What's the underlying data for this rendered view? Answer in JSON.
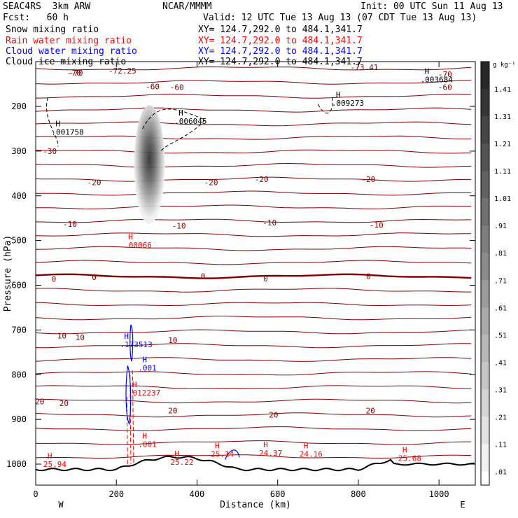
{
  "header": {
    "model": "SEAC4RS  3km ARW",
    "org": "NCAR/MMMM",
    "init": "Init: 00 UTC Sun 11 Aug 13",
    "fcst": "Fcst:   60 h",
    "valid": "Valid: 12 UTC Tue 13 Aug 13 (07 CDT Tue 13 Aug 13)",
    "fields": [
      {
        "name": "Snow mixing ratio",
        "xy": "XY= 124.7,292.0 to 484.1,341.7",
        "color": "#000000"
      },
      {
        "name": "Rain water mixing ratio",
        "xy": "XY= 124.7,292.0 to 484.1,341.7",
        "color": "#ff0000"
      },
      {
        "name": "Cloud water mixing ratio",
        "xy": "XY= 124.7,292.0 to 484.1,341.7",
        "color": "#0000ff"
      },
      {
        "name": "Cloud ice mixing ratio",
        "xy": "XY= 124.7,292.0 to 484.1,341.7",
        "color": "#000000"
      }
    ]
  },
  "colors": {
    "temperature": "#800000",
    "zero_isotherm": "#800000",
    "terrain": "#000000",
    "rain": "#ff0000",
    "cloud_water": "#0000ff",
    "snow": "#000000"
  },
  "chart_data": {
    "type": "cross-section",
    "xlabel": "Distance (km)",
    "ylabel": "Pressure (hPa)",
    "xlim": [
      0,
      1090
    ],
    "ylim": [
      1050,
      100
    ],
    "x_ticks": [
      0,
      200,
      400,
      600,
      800,
      1000
    ],
    "y_ticks": [
      200,
      300,
      400,
      500,
      600,
      700,
      800,
      900,
      1000
    ],
    "x_end_labels": {
      "left": "W",
      "right": "E"
    },
    "colorbar": {
      "unit": "g kg⁻¹",
      "ticks": [
        "1.41",
        "1.31",
        "1.21",
        "1.11",
        "1.01",
        ".91",
        ".81",
        ".71",
        ".61",
        ".51",
        ".41",
        ".31",
        ".21",
        ".11",
        ".01"
      ]
    },
    "temperature_labels": [
      {
        "x": 215,
        "p": 120,
        "text": "-72.25"
      },
      {
        "x": 815,
        "p": 112,
        "text": "-73.41"
      },
      {
        "x": 95,
        "p": 125,
        "text": "-70"
      },
      {
        "x": 1015,
        "p": 128,
        "text": "-70"
      },
      {
        "x": 100,
        "p": 125,
        "text": "-70"
      },
      {
        "x": 290,
        "p": 155,
        "text": "-60"
      },
      {
        "x": 350,
        "p": 157,
        "text": "-60"
      },
      {
        "x": 1015,
        "p": 157,
        "text": "-60"
      },
      {
        "x": 35,
        "p": 300,
        "text": "-30"
      },
      {
        "x": 145,
        "p": 370,
        "text": "-20"
      },
      {
        "x": 435,
        "p": 370,
        "text": "-20"
      },
      {
        "x": 560,
        "p": 363,
        "text": "-20"
      },
      {
        "x": 825,
        "p": 363,
        "text": "-20"
      },
      {
        "x": 85,
        "p": 463,
        "text": "-10"
      },
      {
        "x": 355,
        "p": 467,
        "text": "-10"
      },
      {
        "x": 580,
        "p": 460,
        "text": "-10"
      },
      {
        "x": 845,
        "p": 465,
        "text": "-10"
      },
      {
        "x": 45,
        "p": 586,
        "text": "0"
      },
      {
        "x": 145,
        "p": 582,
        "text": "0"
      },
      {
        "x": 415,
        "p": 580,
        "text": "0"
      },
      {
        "x": 570,
        "p": 585,
        "text": "0"
      },
      {
        "x": 825,
        "p": 580,
        "text": "0"
      },
      {
        "x": 65,
        "p": 713,
        "text": "10"
      },
      {
        "x": 110,
        "p": 717,
        "text": "10"
      },
      {
        "x": 340,
        "p": 723,
        "text": "10"
      },
      {
        "x": 10,
        "p": 860,
        "text": "20"
      },
      {
        "x": 70,
        "p": 864,
        "text": "20"
      },
      {
        "x": 340,
        "p": 880,
        "text": "20"
      },
      {
        "x": 590,
        "p": 890,
        "text": "20"
      },
      {
        "x": 830,
        "p": 880,
        "text": "20"
      }
    ],
    "maxima": [
      {
        "x": 25,
        "p": 257,
        "text": ".001758",
        "color": "#000000"
      },
      {
        "x": 330,
        "p": 233,
        "text": ".006045",
        "color": "#000000"
      },
      {
        "x": 720,
        "p": 192,
        "text": ".009273",
        "color": "#000000"
      },
      {
        "x": 940,
        "p": 140,
        "text": ".003684",
        "color": "#000000"
      },
      {
        "x": 205,
        "p": 510,
        "text": ".00066",
        "color": "#ff0000"
      },
      {
        "x": 195,
        "p": 732,
        "text": ".173513",
        "color": "#0000ff"
      },
      {
        "x": 215,
        "p": 840,
        "text": ".012237",
        "color": "#ff0000"
      },
      {
        "x": 240,
        "p": 785,
        "text": ".001",
        "color": "#0000ff"
      },
      {
        "x": 240,
        "p": 955,
        "text": ".001",
        "color": "#ff0000"
      },
      {
        "x": 5,
        "p": 1000,
        "text": "25.94",
        "color": "#ff0000"
      },
      {
        "x": 320,
        "p": 995,
        "text": "25.22",
        "color": "#ff0000"
      },
      {
        "x": 420,
        "p": 977,
        "text": "25.14",
        "color": "#ff0000"
      },
      {
        "x": 540,
        "p": 975,
        "text": "24.37",
        "color": "#ff0000"
      },
      {
        "x": 640,
        "p": 977,
        "text": "24.16",
        "color": "#ff0000"
      },
      {
        "x": 885,
        "p": 987,
        "text": "25.68",
        "color": "#ff0000"
      }
    ]
  }
}
